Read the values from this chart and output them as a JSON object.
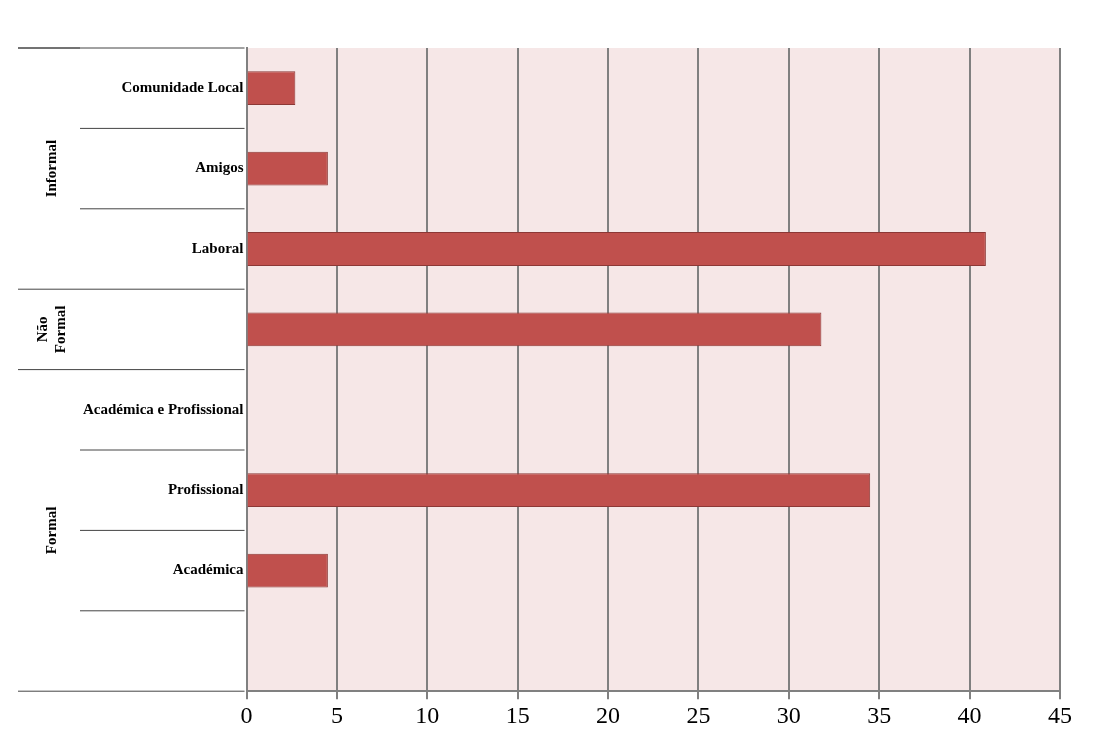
{
  "chart_data": {
    "type": "bar",
    "orientation": "horizontal",
    "categories": [
      "Comunidade Local",
      "Amigos",
      "Laboral",
      null,
      "Académica e Profissional",
      "Profissional",
      "Académica",
      null
    ],
    "values": [
      2.7,
      4.5,
      40.9,
      31.8,
      0,
      34.5,
      4.5,
      0
    ],
    "color": "#c0504d",
    "xlim": [
      0,
      45
    ],
    "xticks": [
      0,
      5,
      10,
      15,
      20,
      25,
      30,
      35,
      40,
      45
    ],
    "grid": "x",
    "legend": false,
    "annotations": [
      "Informal",
      "Não Formal",
      "Formal"
    ]
  }
}
